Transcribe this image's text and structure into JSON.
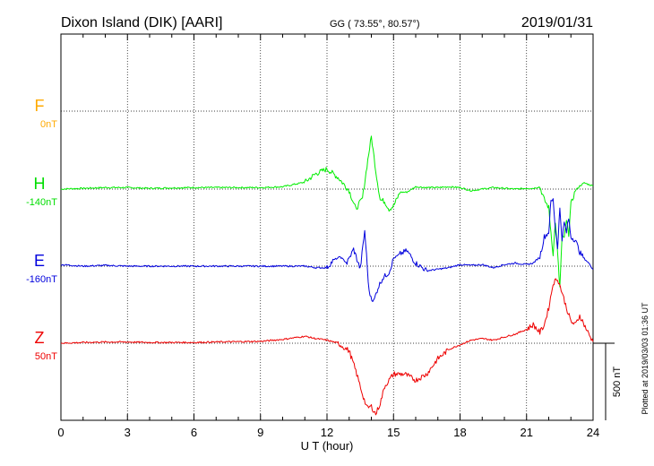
{
  "header": {
    "station": "Dixon Island (DIK)  [AARI]",
    "coords": "GG ( 73.55°,  80.57°)",
    "date": "2019/01/31"
  },
  "colors": {
    "F": "#ffaa00",
    "H": "#00ee00",
    "E": "#0000dd",
    "Z": "#ee0000"
  },
  "chart_data": {
    "type": "line",
    "title": "Dixon Island (DIK)  [AARI]",
    "xlabel": "U T (hour)",
    "ylabel": "",
    "xlim": [
      0,
      24
    ],
    "xticks": [
      "0",
      "3",
      "6",
      "9",
      "12",
      "15",
      "18",
      "21",
      "24"
    ],
    "grid": true,
    "scale_bar": {
      "label": "500 nT",
      "value_nT": 500
    },
    "baseline_step_nT": 500,
    "plotted_note": "Plotted at 2019/03/03 01:36 UT",
    "series": [
      {
        "name": "F",
        "offset_label": "0nT",
        "color": "#ffaa00",
        "x": [],
        "y": []
      },
      {
        "name": "H",
        "offset_label": "-140nT",
        "color": "#00ee00",
        "x": [
          0,
          1,
          2,
          3,
          4,
          5,
          6,
          7,
          8,
          9,
          10,
          11,
          11.5,
          12,
          12.5,
          13,
          13.3,
          13.6,
          13.8,
          14,
          14.2,
          14.4,
          14.6,
          14.8,
          15,
          15.3,
          15.6,
          16,
          16.5,
          17,
          17.5,
          18,
          18.5,
          19,
          19.5,
          20,
          20.5,
          21,
          21.3,
          21.6,
          21.8,
          22,
          22.1,
          22.2,
          22.3,
          22.4,
          22.5,
          22.6,
          22.7,
          22.8,
          22.9,
          23,
          23.2,
          23.4,
          23.6,
          23.8,
          24
        ],
        "y": [
          0,
          5,
          10,
          10,
          5,
          8,
          10,
          10,
          10,
          10,
          15,
          45,
          100,
          130,
          75,
          -10,
          -130,
          -60,
          150,
          340,
          120,
          -70,
          -80,
          -130,
          -110,
          -20,
          -20,
          15,
          10,
          10,
          15,
          10,
          -10,
          0,
          10,
          5,
          0,
          5,
          5,
          15,
          -70,
          -120,
          -280,
          -420,
          -210,
          -420,
          -640,
          -320,
          -310,
          -210,
          -290,
          -100,
          -10,
          20,
          40,
          30,
          20
        ]
      },
      {
        "name": "E",
        "offset_label": "-160nT",
        "color": "#0000dd",
        "x": [
          0,
          1,
          2,
          3,
          4,
          5,
          6,
          7,
          8,
          9,
          10,
          11,
          11.5,
          12,
          12.3,
          12.6,
          12.9,
          13.2,
          13.5,
          13.7,
          13.9,
          14.1,
          14.3,
          14.5,
          14.8,
          15,
          15.3,
          15.6,
          16,
          16.5,
          17,
          17.5,
          18,
          18.5,
          19,
          19.5,
          20,
          20.5,
          21,
          21.3,
          21.6,
          21.8,
          22,
          22.1,
          22.2,
          22.3,
          22.4,
          22.5,
          22.6,
          22.7,
          22.8,
          22.9,
          23,
          23.2,
          23.4,
          23.6,
          23.8,
          24
        ],
        "y": [
          10,
          0,
          5,
          0,
          0,
          0,
          0,
          0,
          0,
          0,
          0,
          0,
          -10,
          -10,
          40,
          60,
          20,
          110,
          -20,
          230,
          -170,
          -230,
          -140,
          -80,
          -40,
          50,
          80,
          100,
          20,
          -30,
          -20,
          -10,
          10,
          5,
          10,
          -10,
          10,
          20,
          10,
          20,
          60,
          190,
          220,
          420,
          430,
          240,
          120,
          370,
          180,
          280,
          220,
          310,
          190,
          170,
          90,
          50,
          20,
          -20
        ]
      },
      {
        "name": "Z",
        "offset_label": "50nT",
        "color": "#ee0000",
        "x": [
          0,
          1,
          2,
          3,
          4,
          5,
          6,
          7,
          8,
          9,
          10,
          11,
          11.5,
          12,
          12.5,
          13,
          13.3,
          13.6,
          13.8,
          14,
          14.2,
          14.4,
          14.6,
          14.8,
          15,
          15.5,
          16,
          16.5,
          17,
          17.5,
          18,
          18.5,
          19,
          19.5,
          20,
          20.5,
          21,
          21.3,
          21.6,
          21.8,
          22,
          22.2,
          22.4,
          22.6,
          22.8,
          23,
          23.2,
          23.4,
          23.6,
          23.8,
          24
        ],
        "y": [
          0,
          5,
          8,
          8,
          5,
          5,
          5,
          8,
          10,
          12,
          25,
          45,
          30,
          20,
          0,
          -50,
          -180,
          -330,
          -420,
          -410,
          -460,
          -390,
          -280,
          -240,
          -200,
          -200,
          -240,
          -200,
          -100,
          -40,
          -10,
          20,
          30,
          20,
          40,
          60,
          90,
          120,
          70,
          120,
          230,
          390,
          420,
          330,
          230,
          140,
          120,
          180,
          120,
          60,
          10
        ]
      }
    ]
  }
}
